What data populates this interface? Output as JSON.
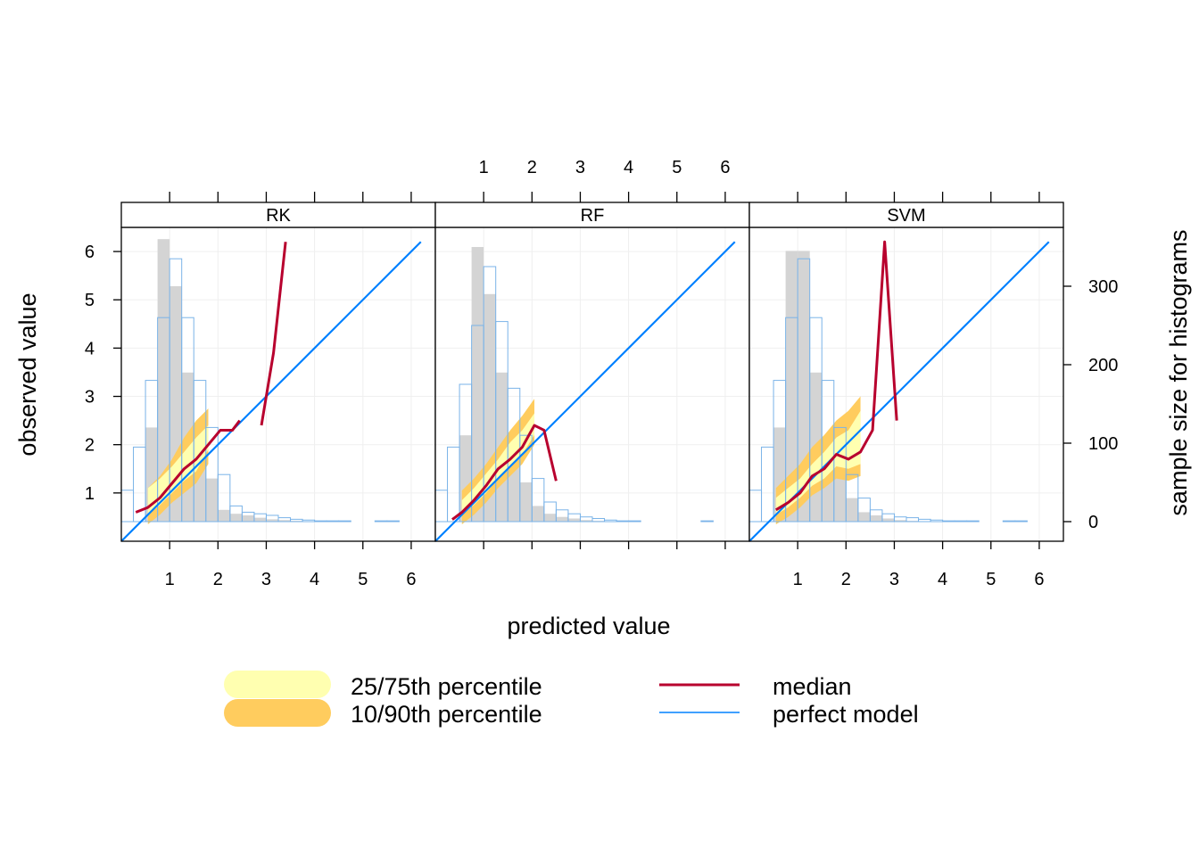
{
  "chart_data": {
    "type": "line",
    "xlabel": "predicted value",
    "ylabel": "observed value",
    "y2label": "sample size for histograms",
    "xticks": [
      1,
      2,
      3,
      4,
      5,
      6
    ],
    "yticks": [
      1,
      2,
      3,
      4,
      5,
      6
    ],
    "y2ticks": [
      0,
      100,
      200,
      300
    ],
    "xlim": [
      0.0,
      6.5
    ],
    "ylim": [
      0.0,
      6.5
    ],
    "y2lim": [
      -25,
      375
    ],
    "grid": true,
    "legend": {
      "position": "bottom",
      "items": [
        {
          "label": "25/75th percentile",
          "kind": "band",
          "color": "#FFFFB0"
        },
        {
          "label": "10/90th percentile",
          "kind": "band",
          "color": "#FFCC5E"
        },
        {
          "label": "median",
          "kind": "line",
          "color": "#B8002E"
        },
        {
          "label": "perfect model",
          "kind": "line",
          "color": "#0080FF"
        }
      ]
    },
    "colors": {
      "band_inner": "#FFFFB0",
      "band_outer": "#FFCC5E",
      "median": "#B8002E",
      "perfect": "#0080FF",
      "obs_hist": "#D4D4D4",
      "pred_hist": "#7AB3E8",
      "grid": "#EFEFEF"
    },
    "bin_width": 0.25,
    "panels": [
      {
        "name": "RK",
        "median": {
          "x": [
            0.3,
            0.55,
            0.8,
            1.05,
            1.3,
            1.55,
            1.8,
            2.05,
            2.3,
            2.45,
            null,
            2.9,
            3.15,
            3.4
          ],
          "y": [
            0.6,
            0.7,
            0.9,
            1.2,
            1.5,
            1.7,
            2.0,
            2.3,
            2.3,
            2.5,
            null,
            2.4,
            3.9,
            6.2
          ]
        },
        "band_x": [
          0.55,
          0.8,
          1.05,
          1.3,
          1.55,
          1.8
        ],
        "q25": [
          0.55,
          0.75,
          1.0,
          1.25,
          1.45,
          1.9
        ],
        "q75": [
          1.1,
          1.3,
          1.55,
          1.85,
          2.15,
          2.4
        ],
        "q10": [
          0.35,
          0.55,
          0.8,
          1.0,
          1.2,
          1.6
        ],
        "q90": [
          1.1,
          1.35,
          1.7,
          2.15,
          2.5,
          2.75
        ],
        "hist_pred": [
          40,
          95,
          180,
          260,
          335,
          260,
          180,
          120,
          60,
          20,
          12,
          10,
          8,
          5,
          3,
          2,
          1,
          1,
          1,
          0,
          0,
          1,
          1,
          0
        ],
        "hist_obs": [
          0,
          0,
          120,
          360,
          300,
          190,
          100,
          55,
          15,
          10,
          8,
          5,
          3,
          2,
          1,
          0,
          0,
          0,
          0,
          0,
          0,
          0,
          0,
          0
        ]
      },
      {
        "name": "RF",
        "median": {
          "x": [
            0.35,
            0.55,
            0.8,
            1.05,
            1.3,
            1.55,
            1.8,
            2.05,
            2.25,
            2.5
          ],
          "y": [
            0.45,
            0.6,
            0.85,
            1.15,
            1.5,
            1.7,
            1.95,
            2.4,
            2.3,
            1.25
          ]
        },
        "band_x": [
          0.55,
          0.8,
          1.05,
          1.3,
          1.55,
          1.8,
          2.05
        ],
        "q25": [
          0.55,
          0.75,
          1.0,
          1.3,
          1.55,
          1.8,
          2.2
        ],
        "q75": [
          0.85,
          1.1,
          1.4,
          1.7,
          2.05,
          2.3,
          2.65
        ],
        "q10": [
          0.35,
          0.55,
          0.8,
          1.1,
          1.35,
          1.6,
          2.0
        ],
        "q90": [
          1.05,
          1.3,
          1.6,
          1.95,
          2.3,
          2.6,
          2.95
        ],
        "hist_pred": [
          40,
          95,
          175,
          250,
          325,
          255,
          170,
          110,
          55,
          25,
          15,
          10,
          6,
          4,
          2,
          1,
          1,
          0,
          0,
          0,
          0,
          0,
          1,
          0
        ],
        "hist_obs": [
          0,
          0,
          110,
          350,
          290,
          190,
          100,
          50,
          20,
          10,
          6,
          4,
          2,
          1,
          0,
          0,
          0,
          0,
          0,
          0,
          0,
          0,
          0,
          0
        ]
      },
      {
        "name": "SVM",
        "median": {
          "x": [
            0.55,
            0.8,
            1.05,
            1.3,
            1.55,
            1.8,
            2.05,
            2.3,
            2.55,
            2.8,
            3.05
          ],
          "y": [
            0.65,
            0.8,
            1.0,
            1.35,
            1.5,
            1.8,
            1.7,
            1.85,
            2.3,
            6.2,
            2.5
          ]
        },
        "band_x": [
          0.55,
          0.8,
          1.05,
          1.3,
          1.55,
          1.8,
          2.05,
          2.3
        ],
        "q25": [
          0.55,
          0.7,
          0.9,
          1.15,
          1.3,
          1.55,
          1.5,
          1.6
        ],
        "q75": [
          0.9,
          1.1,
          1.3,
          1.6,
          1.85,
          2.15,
          2.3,
          2.7
        ],
        "q10": [
          0.35,
          0.5,
          0.7,
          0.95,
          1.1,
          1.3,
          1.25,
          1.35
        ],
        "q90": [
          1.1,
          1.35,
          1.6,
          1.95,
          2.2,
          2.5,
          2.7,
          3.0
        ],
        "hist_pred": [
          40,
          95,
          180,
          260,
          335,
          260,
          180,
          120,
          60,
          30,
          15,
          10,
          6,
          5,
          3,
          2,
          1,
          1,
          1,
          0,
          0,
          1,
          1,
          0
        ],
        "hist_obs": [
          0,
          0,
          120,
          345,
          345,
          190,
          100,
          60,
          30,
          12,
          8,
          4,
          2,
          1,
          0,
          0,
          0,
          0,
          0,
          0,
          0,
          0,
          0,
          0
        ]
      }
    ]
  }
}
